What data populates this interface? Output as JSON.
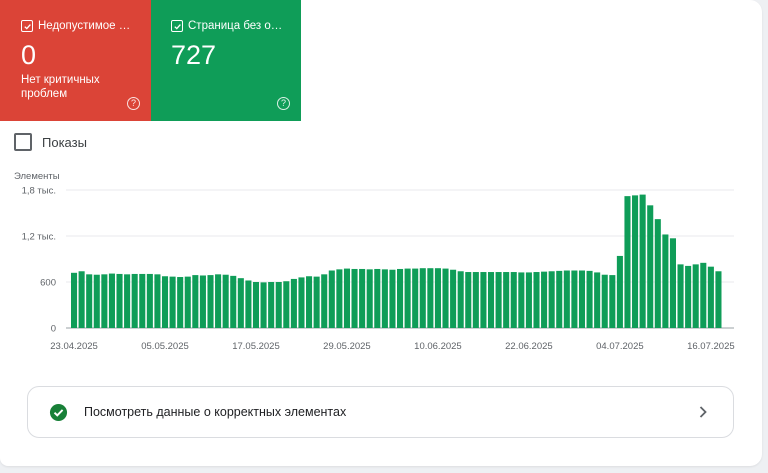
{
  "tiles": [
    {
      "label": "Недопустимое з...",
      "value": "0",
      "subtitle_line1": "Нет критичных",
      "subtitle_line2": "проблем",
      "help": "?"
    },
    {
      "label": "Страница без ош...",
      "value": "727",
      "help": "?"
    }
  ],
  "impressions": {
    "label": "Показы"
  },
  "colors": {
    "error": "#db4437",
    "valid": "#0f9d58",
    "bar": "#0f9d58",
    "grid": "#e8eaed"
  },
  "bottom_link": {
    "label": "Посмотреть данные о корректных элементах",
    "icon": "check-circle-icon",
    "chevron": "chevron-right-icon"
  },
  "chart_data": {
    "type": "bar",
    "ylabel": "Элементы",
    "ylim": [
      0,
      1800
    ],
    "yticks": [
      {
        "value": 0,
        "label": "0"
      },
      {
        "value": 600,
        "label": "600"
      },
      {
        "value": 1200,
        "label": "1,2 тыс."
      },
      {
        "value": 1800,
        "label": "1,8 тыс."
      }
    ],
    "xtick_labels": [
      "23.04.2025",
      "05.05.2025",
      "17.05.2025",
      "29.05.2025",
      "10.06.2025",
      "22.06.2025",
      "04.07.2025",
      "16.07.2025"
    ],
    "xtick_indices": [
      0,
      12,
      24,
      36,
      48,
      60,
      72,
      84
    ],
    "series": [
      {
        "name": "Страница без ошибок",
        "values": [
          720,
          740,
          700,
          695,
          700,
          710,
          705,
          700,
          705,
          705,
          705,
          700,
          675,
          670,
          665,
          670,
          690,
          685,
          690,
          700,
          695,
          680,
          650,
          620,
          600,
          595,
          600,
          600,
          610,
          640,
          660,
          675,
          670,
          700,
          750,
          765,
          775,
          770,
          770,
          765,
          770,
          765,
          760,
          770,
          775,
          775,
          780,
          780,
          780,
          775,
          760,
          740,
          730,
          730,
          730,
          730,
          730,
          730,
          730,
          725,
          725,
          730,
          735,
          740,
          745,
          750,
          750,
          750,
          745,
          725,
          695,
          690,
          940,
          1720,
          1730,
          1740,
          1600,
          1420,
          1220,
          1170,
          830,
          810,
          830,
          850,
          800,
          740
        ]
      }
    ]
  }
}
